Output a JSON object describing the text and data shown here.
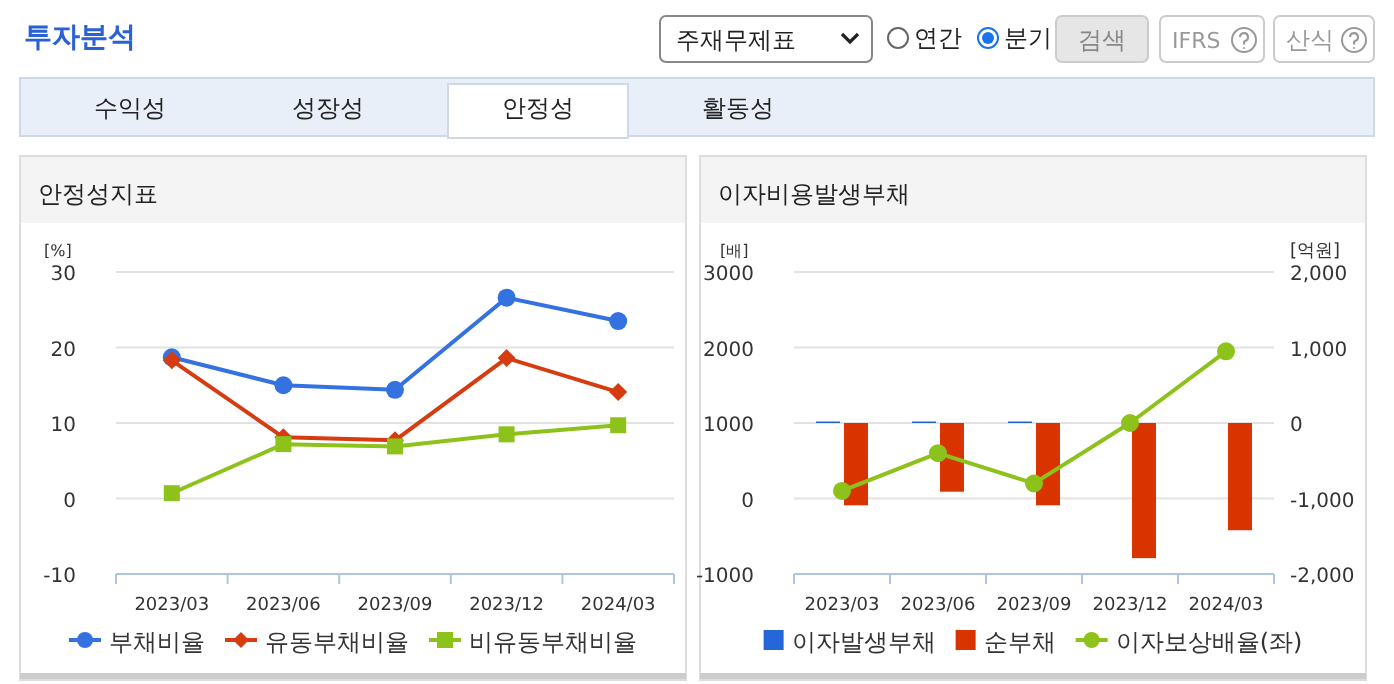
{
  "chart_data": [
    {
      "type": "other",
      "title": "투자분석",
      "annotations": [
        "주재무제표",
        "연간",
        "분기",
        "검색",
        "IFRS",
        "산식",
        "수익성",
        "성장성",
        "안정성",
        "활동성"
      ]
    },
    {
      "type": "line",
      "title": "안정성지표",
      "ylabel": "[%]",
      "categories": [
        "2023/03",
        "2023/06",
        "2023/09",
        "2023/12",
        "2024/03"
      ],
      "ylim": [
        -10,
        30
      ],
      "yticks": [
        -10,
        0,
        10,
        20,
        30
      ],
      "grid": "y",
      "legend": "bottom",
      "series": [
        {
          "name": "부채비율",
          "color": "#3372e0",
          "marker": "circle",
          "values": [
            18.7,
            15.0,
            14.4,
            26.6,
            23.5
          ]
        },
        {
          "name": "유동부채비율",
          "color": "#d63c10",
          "marker": "diamond",
          "values": [
            18.3,
            8.1,
            7.7,
            18.6,
            14.1
          ]
        },
        {
          "name": "비유동부채비율",
          "color": "#8cc21a",
          "marker": "square",
          "values": [
            0.7,
            7.2,
            6.9,
            8.5,
            9.7
          ]
        }
      ]
    },
    {
      "type": "bar",
      "title": "이자비용발생부채",
      "ylabel": "[배]",
      "y2label": "[억원]",
      "categories": [
        "2023/03",
        "2023/06",
        "2023/09",
        "2023/12",
        "2024/03"
      ],
      "ylim": [
        -1000,
        3000
      ],
      "yticks": [
        -1000,
        0,
        1000,
        2000,
        3000
      ],
      "y2lim": [
        -2000,
        2000
      ],
      "y2ticks": [
        {
          "value": -2000,
          "label": "-2,000"
        },
        {
          "value": -1000,
          "label": "-1,000"
        },
        0,
        {
          "value": 1000,
          "label": "1,000"
        },
        {
          "value": 2000,
          "label": "2,000"
        }
      ],
      "grid": "y",
      "legend": "bottom",
      "series": [
        {
          "name": "이자발생부채",
          "type": "bar",
          "axis": "y2",
          "color": "#2566d8",
          "values": [
            20,
            20,
            20,
            null,
            null
          ]
        },
        {
          "name": "순부채",
          "type": "bar",
          "axis": "y2",
          "color": "#d93300",
          "values": [
            -1090,
            -910,
            -1090,
            -1790,
            -1420
          ]
        },
        {
          "name": "이자보상배율(좌)",
          "type": "line",
          "axis": "y",
          "color": "#8cc21a",
          "marker": "circle",
          "values": [
            100,
            600,
            200,
            1000,
            1950
          ]
        }
      ]
    }
  ]
}
